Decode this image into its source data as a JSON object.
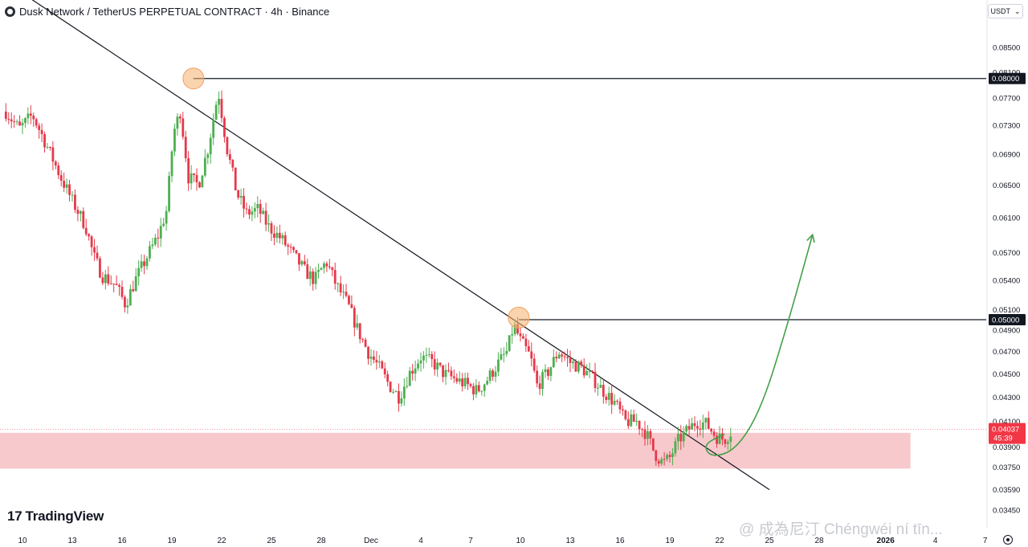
{
  "header": {
    "symbol_title": "Dusk Network / TetherUS PERPETUAL CONTRACT · 4h · Binance"
  },
  "currency_button": {
    "label": "USDT",
    "chevron_icon": "chevron-down-icon"
  },
  "branding": {
    "logo_mark": "17",
    "logo_text": "TradingView"
  },
  "watermark": "@ 成為尼汀 Chéngwéi ní tīn...",
  "settings_icon": "gear-icon",
  "colors": {
    "up": "#26a69a",
    "up_body": "#4caf50",
    "down": "#f23645",
    "down_body": "#e5394b",
    "zone": "#f7c9cc",
    "projection": "#43a047",
    "touch_marker": "#f5b06b",
    "price_tag": "#f23645"
  },
  "chart_data": {
    "type": "candlestick",
    "title": "Dusk Network / TetherUS PERPETUAL CONTRACT · 4h · Binance",
    "y_axis": {
      "scale": "log",
      "range": [
        0.0338,
        0.0905
      ],
      "ticks": [
        "0.08500",
        "0.08100",
        "0.07700",
        "0.07300",
        "0.06900",
        "0.06500",
        "0.06100",
        "0.05700",
        "0.05400",
        "0.05100",
        "0.04900",
        "0.04700",
        "0.04500",
        "0.04300",
        "0.04100",
        "0.03900",
        "0.03750",
        "0.03590",
        "0.03450"
      ]
    },
    "x_axis": {
      "ticks": [
        {
          "label": "10",
          "day": 10
        },
        {
          "label": "13",
          "day": 13
        },
        {
          "label": "16",
          "day": 16
        },
        {
          "label": "19",
          "day": 19
        },
        {
          "label": "22",
          "day": 22
        },
        {
          "label": "25",
          "day": 25
        },
        {
          "label": "28",
          "day": 28
        },
        {
          "label": "Dec",
          "day": 31
        },
        {
          "label": "4",
          "day": 34
        },
        {
          "label": "7",
          "day": 37
        },
        {
          "label": "10",
          "day": 40
        },
        {
          "label": "13",
          "day": 43
        },
        {
          "label": "16",
          "day": 46
        },
        {
          "label": "19",
          "day": 49
        },
        {
          "label": "22",
          "day": 52
        },
        {
          "label": "25",
          "day": 55
        },
        {
          "label": "28",
          "day": 58
        },
        {
          "label": "2026",
          "day": 62,
          "bold": true
        },
        {
          "label": "4",
          "day": 65
        },
        {
          "label": "7",
          "day": 68
        }
      ]
    },
    "price_path": [
      {
        "day": 9.0,
        "price": 0.075
      },
      {
        "day": 9.8,
        "price": 0.0725
      },
      {
        "day": 10.6,
        "price": 0.0745
      },
      {
        "day": 11.5,
        "price": 0.07
      },
      {
        "day": 12.3,
        "price": 0.066
      },
      {
        "day": 13.0,
        "price": 0.063
      },
      {
        "day": 13.8,
        "price": 0.06
      },
      {
        "day": 14.3,
        "price": 0.0565
      },
      {
        "day": 14.8,
        "price": 0.0545
      },
      {
        "day": 15.6,
        "price": 0.0535
      },
      {
        "day": 16.2,
        "price": 0.0515
      },
      {
        "day": 16.8,
        "price": 0.054
      },
      {
        "day": 17.5,
        "price": 0.0565
      },
      {
        "day": 18.2,
        "price": 0.059
      },
      {
        "day": 18.7,
        "price": 0.062
      },
      {
        "day": 19.1,
        "price": 0.072
      },
      {
        "day": 19.5,
        "price": 0.075
      },
      {
        "day": 20.0,
        "price": 0.066
      },
      {
        "day": 20.6,
        "price": 0.065
      },
      {
        "day": 21.2,
        "price": 0.07
      },
      {
        "day": 21.8,
        "price": 0.078
      },
      {
        "day": 22.3,
        "price": 0.07
      },
      {
        "day": 22.9,
        "price": 0.064
      },
      {
        "day": 23.5,
        "price": 0.0615
      },
      {
        "day": 24.2,
        "price": 0.062
      },
      {
        "day": 24.8,
        "price": 0.06
      },
      {
        "day": 25.6,
        "price": 0.0585
      },
      {
        "day": 26.4,
        "price": 0.0565
      },
      {
        "day": 27.0,
        "price": 0.055
      },
      {
        "day": 27.6,
        "price": 0.054
      },
      {
        "day": 28.3,
        "price": 0.056
      },
      {
        "day": 28.9,
        "price": 0.0535
      },
      {
        "day": 29.6,
        "price": 0.0515
      },
      {
        "day": 30.2,
        "price": 0.049
      },
      {
        "day": 30.8,
        "price": 0.047
      },
      {
        "day": 31.5,
        "price": 0.0455
      },
      {
        "day": 32.1,
        "price": 0.044
      },
      {
        "day": 32.7,
        "price": 0.043
      },
      {
        "day": 33.3,
        "price": 0.045
      },
      {
        "day": 34.0,
        "price": 0.0465
      },
      {
        "day": 34.7,
        "price": 0.046
      },
      {
        "day": 35.4,
        "price": 0.045
      },
      {
        "day": 36.1,
        "price": 0.0445
      },
      {
        "day": 36.8,
        "price": 0.044
      },
      {
        "day": 37.4,
        "price": 0.0435
      },
      {
        "day": 38.0,
        "price": 0.0445
      },
      {
        "day": 38.7,
        "price": 0.046
      },
      {
        "day": 39.2,
        "price": 0.047
      },
      {
        "day": 39.6,
        "price": 0.0495
      },
      {
        "day": 40.0,
        "price": 0.048
      },
      {
        "day": 40.6,
        "price": 0.0465
      },
      {
        "day": 41.0,
        "price": 0.044
      },
      {
        "day": 41.6,
        "price": 0.045
      },
      {
        "day": 42.3,
        "price": 0.047
      },
      {
        "day": 43.0,
        "price": 0.046
      },
      {
        "day": 43.7,
        "price": 0.0455
      },
      {
        "day": 44.4,
        "price": 0.0445
      },
      {
        "day": 45.0,
        "price": 0.0435
      },
      {
        "day": 45.7,
        "price": 0.0425
      },
      {
        "day": 46.3,
        "price": 0.041
      },
      {
        "day": 47.0,
        "price": 0.041
      },
      {
        "day": 47.6,
        "price": 0.04
      },
      {
        "day": 48.1,
        "price": 0.0385
      },
      {
        "day": 48.6,
        "price": 0.0378
      },
      {
        "day": 49.0,
        "price": 0.0382
      },
      {
        "day": 49.5,
        "price": 0.0395
      },
      {
        "day": 50.0,
        "price": 0.0402
      },
      {
        "day": 50.6,
        "price": 0.041
      },
      {
        "day": 51.2,
        "price": 0.0408
      },
      {
        "day": 51.8,
        "price": 0.0398
      },
      {
        "day": 52.3,
        "price": 0.0396
      },
      {
        "day": 52.8,
        "price": 0.04037
      }
    ],
    "horizontal_levels": [
      {
        "label": "0.08000",
        "price": 0.08
      },
      {
        "label": "0.05000",
        "price": 0.05
      }
    ],
    "support_zone": {
      "from": 0.0374,
      "to": 0.0401,
      "day_end": 63.5
    },
    "trendline": {
      "from": {
        "day": 9.0,
        "price": 0.0965
      },
      "to": {
        "day": 55.0,
        "price": 0.0359
      }
    },
    "touch_points": [
      {
        "day": 20.3,
        "price": 0.08
      },
      {
        "day": 39.9,
        "price": 0.0502
      }
    ],
    "projection_arrow": [
      {
        "day": 52.3,
        "price": 0.04
      },
      {
        "day": 51.0,
        "price": 0.0392
      },
      {
        "day": 51.5,
        "price": 0.0382
      },
      {
        "day": 53.0,
        "price": 0.0388
      },
      {
        "day": 54.5,
        "price": 0.042
      },
      {
        "day": 56.0,
        "price": 0.049
      },
      {
        "day": 57.6,
        "price": 0.059
      }
    ],
    "current_price": {
      "value": "0.04037",
      "countdown": "45:39"
    }
  }
}
